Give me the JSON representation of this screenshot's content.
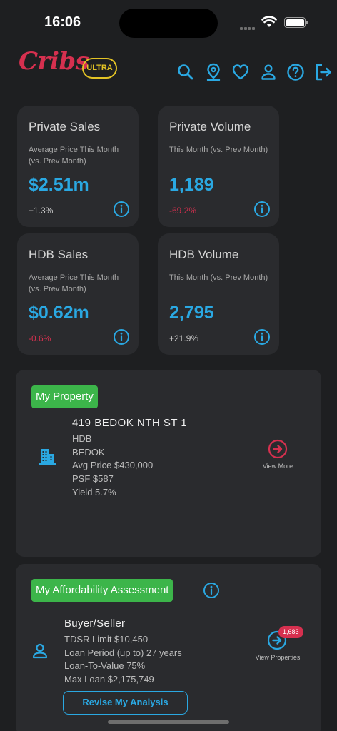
{
  "status_bar": {
    "time": "16:06"
  },
  "header": {
    "brand": "Cribs",
    "tier_badge": "ULTRA",
    "icons": [
      "search-icon",
      "location-pin-icon",
      "heart-icon",
      "user-icon",
      "help-icon",
      "logout-icon"
    ]
  },
  "stats": [
    {
      "title": "Private Sales",
      "subtitle": "Average Price This Month (vs. Prev Month)",
      "value": "$2.51m",
      "change": "+1.3%",
      "trend": "pos"
    },
    {
      "title": "Private Volume",
      "subtitle": "This Month (vs. Prev Month)",
      "value": "1,189",
      "change": "-69.2%",
      "trend": "neg"
    },
    {
      "title": "HDB Sales",
      "subtitle": "Average Price This Month (vs. Prev Month)",
      "value": "$0.62m",
      "change": "-0.6%",
      "trend": "neg"
    },
    {
      "title": "HDB Volume",
      "subtitle": "This Month (vs. Prev Month)",
      "value": "2,795",
      "change": "+21.9%",
      "trend": "pos"
    }
  ],
  "my_property": {
    "tag": "My Property",
    "address": "419 BEDOK NTH ST 1",
    "type": "HDB",
    "town": "BEDOK",
    "avg_price": "Avg Price $430,000",
    "psf": "PSF $587",
    "yield": "Yield 5.7%",
    "view_more": "View More"
  },
  "affordability": {
    "tag": "My Affordability Assessment",
    "role": "Buyer/Seller",
    "tdsr": "TDSR Limit $10,450",
    "loan_period": "Loan Period (up to) 27 years",
    "ltv": "Loan-To-Value 75%",
    "max_loan": "Max Loan $2,175,749",
    "view_properties": "View Properties",
    "badge_count": "1,683",
    "revise_button": "Revise My Analysis"
  },
  "colors": {
    "accent": "#2aa8e2",
    "brand": "#d6304f",
    "ultra": "#e3c325",
    "tag_green": "#3cb54a",
    "card_bg": "#2a2b2e",
    "page_bg": "#1e1f21"
  }
}
